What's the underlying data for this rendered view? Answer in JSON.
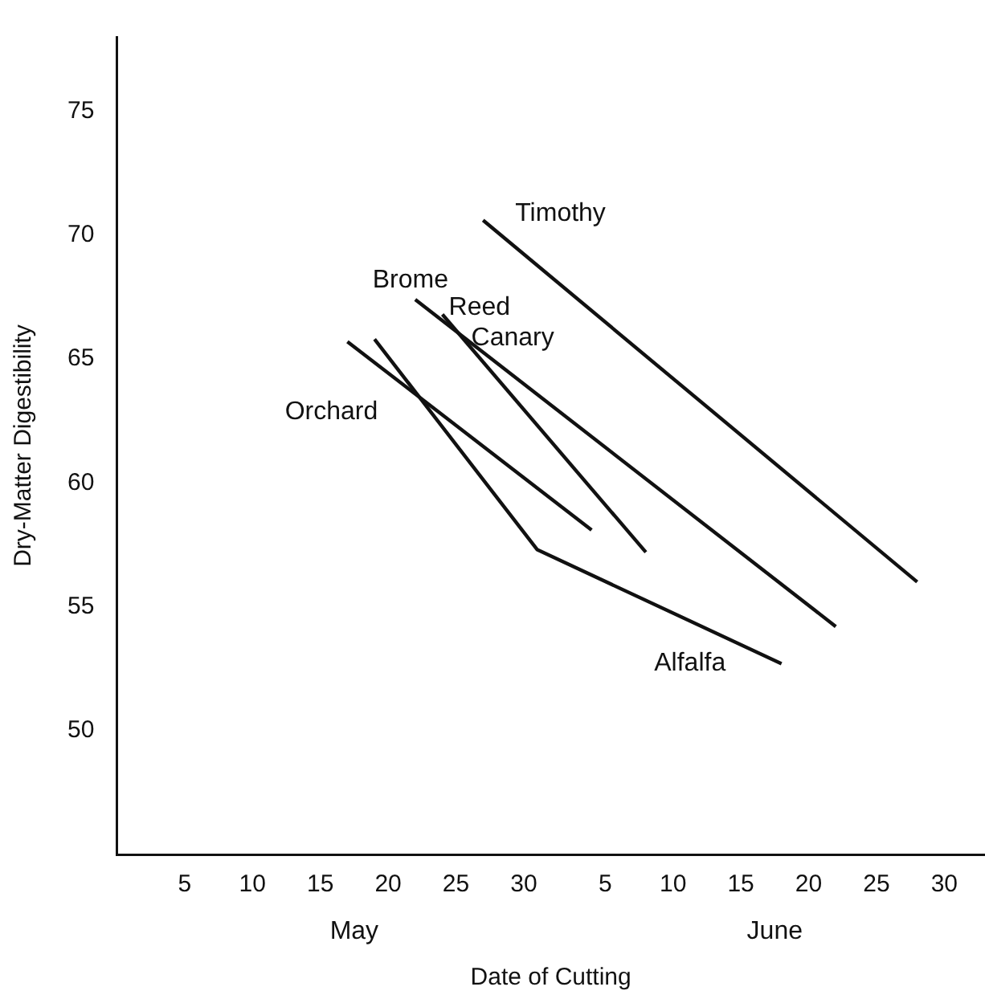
{
  "chart_data": {
    "type": "line",
    "xlabel": "Date of Cutting",
    "ylabel": "Dry-Matter Digestibility",
    "xlim": [
      "--04-30",
      "--07-03"
    ],
    "ylim": [
      45,
      78
    ],
    "xticks": [
      {
        "value": "--05-05",
        "label": "5"
      },
      {
        "value": "--05-10",
        "label": "10"
      },
      {
        "value": "--05-15",
        "label": "15"
      },
      {
        "value": "--05-20",
        "label": "20"
      },
      {
        "value": "--05-25",
        "label": "25"
      },
      {
        "value": "--05-30",
        "label": "30"
      },
      {
        "value": "--06-05",
        "label": "5"
      },
      {
        "value": "--06-10",
        "label": "10"
      },
      {
        "value": "--06-15",
        "label": "15"
      },
      {
        "value": "--06-20",
        "label": "20"
      },
      {
        "value": "--06-25",
        "label": "25"
      },
      {
        "value": "--06-30",
        "label": "30"
      }
    ],
    "yticks": [
      50,
      55,
      60,
      65,
      70,
      75
    ],
    "grid": false,
    "legend": false,
    "annotations": [
      "May",
      "June"
    ],
    "series": [
      {
        "name": "Timothy",
        "color": "#111111",
        "x": [
          "--05-27",
          "--06-28"
        ],
        "values": [
          70.6,
          56.0
        ]
      },
      {
        "name": "Brome",
        "color": "#111111",
        "x": [
          "--05-22",
          "--06-22"
        ],
        "values": [
          67.4,
          54.2
        ]
      },
      {
        "name": "Reed Canary",
        "color": "#111111",
        "x": [
          "--05-24",
          "--06-08"
        ],
        "values": [
          66.8,
          57.2
        ]
      },
      {
        "name": "Orchard",
        "color": "#111111",
        "x": [
          "--05-17",
          "--06-04"
        ],
        "values": [
          65.7,
          58.1
        ]
      },
      {
        "name": "Alfalfa",
        "color": "#111111",
        "x": [
          "--05-19",
          "--05-31",
          "--06-18"
        ],
        "values": [
          65.8,
          57.3,
          52.7
        ]
      }
    ]
  }
}
